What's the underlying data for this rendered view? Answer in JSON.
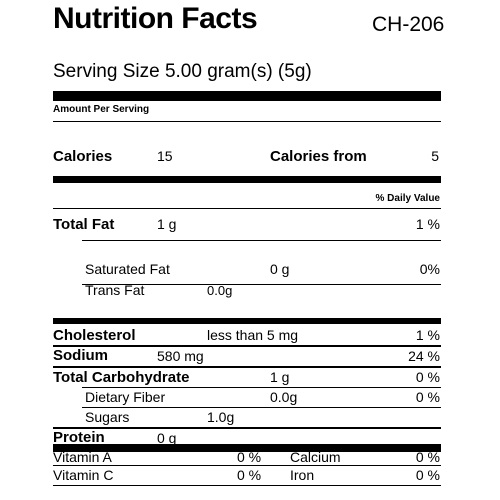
{
  "header": {
    "title": "Nutrition Facts",
    "code": "CH-206",
    "serving_size": "Serving Size 5.00 gram(s) (5g)"
  },
  "amount_per_serving": "Amount Per Serving",
  "calories": {
    "label": "Calories",
    "value": "15",
    "from_label": "Calories from",
    "from_value": "5"
  },
  "daily_value_header": "% Daily Value",
  "total_fat": {
    "label": "Total Fat",
    "amount": "1 g",
    "dv": "1 %"
  },
  "saturated_fat": {
    "label": "Saturated Fat",
    "amount": "0 g",
    "dv": "0%"
  },
  "trans_fat": {
    "label": "Trans Fat",
    "amount": "0.0g"
  },
  "cholesterol": {
    "label": "Cholesterol",
    "amount": "less than 5 mg",
    "dv": "1 %"
  },
  "sodium": {
    "label": "Sodium",
    "amount": "580 mg",
    "dv": "24 %"
  },
  "total_carbohydrate": {
    "label": "Total Carbohydrate",
    "amount": "1 g",
    "dv": "0 %"
  },
  "dietary_fiber": {
    "label": "Dietary Fiber",
    "amount": "0.0g",
    "dv": "0 %"
  },
  "sugars": {
    "label": "Sugars",
    "amount": "1.0g"
  },
  "protein": {
    "label": "Protein",
    "amount": "0 g"
  },
  "vitamins": {
    "vitamin_a": {
      "label": "Vitamin A",
      "dv": "0 %"
    },
    "calcium": {
      "label": "Calcium",
      "dv": "0 %"
    },
    "vitamin_c": {
      "label": "Vitamin C",
      "dv": "0 %"
    },
    "iron": {
      "label": "Iron",
      "dv": "0 %"
    }
  }
}
